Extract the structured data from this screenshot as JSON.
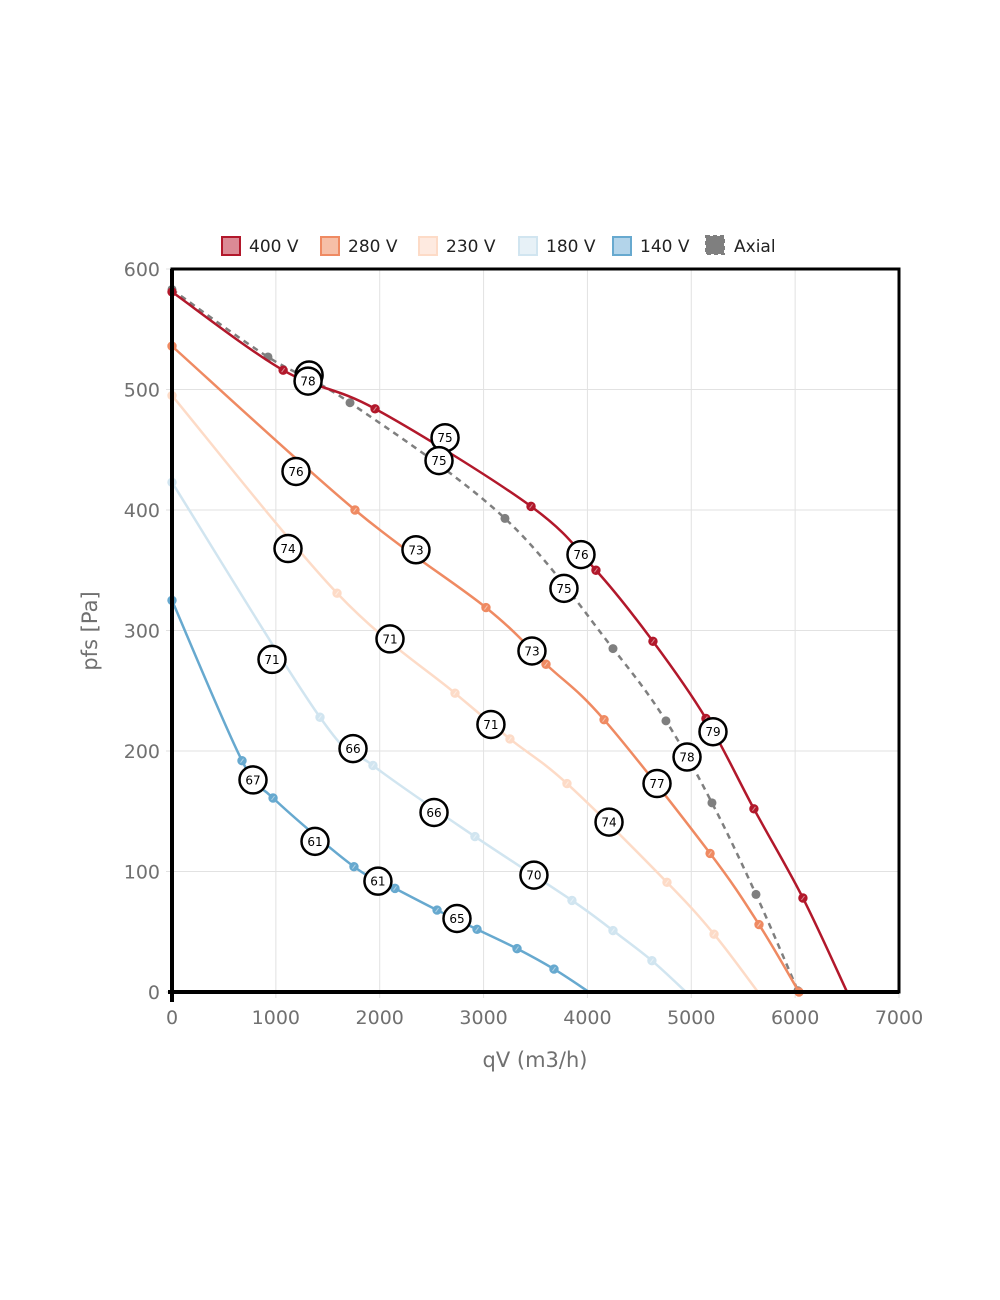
{
  "chart_data": {
    "type": "line",
    "title": "",
    "xlabel": "qV (m3/h)",
    "ylabel": "pfs [Pa]",
    "xlim": [
      0,
      7000
    ],
    "ylim": [
      0,
      600
    ],
    "xticks": [
      0,
      1000,
      2000,
      3000,
      4000,
      5000,
      6000,
      7000
    ],
    "yticks": [
      0,
      100,
      200,
      300,
      400,
      500,
      600
    ],
    "grid": true,
    "legend_position": "top-center",
    "series": [
      {
        "name": "400 V",
        "color": "#b2182b",
        "legend_fill": "#db8a95",
        "dashed": false,
        "points": [
          [
            0,
            581
          ],
          [
            1070,
            516
          ],
          [
            1955,
            484
          ],
          [
            3457,
            403
          ],
          [
            4082,
            350
          ],
          [
            4631,
            291
          ],
          [
            5141,
            227
          ],
          [
            5603,
            152
          ],
          [
            6075,
            78
          ],
          [
            6500,
            0
          ]
        ],
        "markers": [
          [
            0,
            581
          ],
          [
            1070,
            516
          ],
          [
            1955,
            484
          ],
          [
            3457,
            403
          ],
          [
            4082,
            350
          ],
          [
            4631,
            291
          ],
          [
            5141,
            227
          ],
          [
            5603,
            152
          ],
          [
            6075,
            78
          ]
        ]
      },
      {
        "name": "280 V",
        "color": "#ef8a62",
        "legend_fill": "#f6bfa7",
        "dashed": false,
        "points": [
          [
            0,
            536
          ],
          [
            1762,
            400
          ],
          [
            3023,
            319
          ],
          [
            3601,
            272
          ],
          [
            4160,
            226
          ],
          [
            5181,
            115
          ],
          [
            5652,
            56
          ],
          [
            6037,
            0
          ]
        ],
        "markers": [
          [
            0,
            536
          ],
          [
            1762,
            400
          ],
          [
            3023,
            319
          ],
          [
            3601,
            272
          ],
          [
            4160,
            226
          ],
          [
            5181,
            115
          ],
          [
            5652,
            56
          ],
          [
            6037,
            0
          ]
        ]
      },
      {
        "name": "230 V",
        "color": "#fddbc7",
        "legend_fill": "#feeae0",
        "dashed": false,
        "points": [
          [
            0,
            495
          ],
          [
            1589,
            331
          ],
          [
            2725,
            248
          ],
          [
            3254,
            210
          ],
          [
            3803,
            173
          ],
          [
            4766,
            91
          ],
          [
            5219,
            48
          ],
          [
            5642,
            0
          ]
        ],
        "markers": [
          [
            0,
            495
          ],
          [
            1589,
            331
          ],
          [
            2725,
            248
          ],
          [
            3254,
            210
          ],
          [
            3803,
            173
          ],
          [
            4766,
            91
          ],
          [
            5219,
            48
          ]
        ]
      },
      {
        "name": "180 V",
        "color": "#d1e5f0",
        "legend_fill": "#e7f1f7",
        "dashed": false,
        "points": [
          [
            0,
            423
          ],
          [
            1425,
            228
          ],
          [
            1935,
            188
          ],
          [
            2917,
            129
          ],
          [
            3851,
            76
          ],
          [
            4246,
            51
          ],
          [
            4621,
            26
          ],
          [
            4949,
            0
          ]
        ],
        "markers": [
          [
            0,
            423
          ],
          [
            1425,
            228
          ],
          [
            1935,
            188
          ],
          [
            2917,
            129
          ],
          [
            3851,
            76
          ],
          [
            4246,
            51
          ],
          [
            4621,
            26
          ]
        ]
      },
      {
        "name": "140 V",
        "color": "#67a9cf",
        "legend_fill": "#b3d4ea",
        "dashed": false,
        "points": [
          [
            0,
            325
          ],
          [
            674,
            192
          ],
          [
            973,
            161
          ],
          [
            1752,
            104
          ],
          [
            2147,
            86
          ],
          [
            2552,
            68
          ],
          [
            2937,
            52
          ],
          [
            3322,
            36
          ],
          [
            3678,
            19
          ],
          [
            4015,
            0
          ]
        ],
        "markers": [
          [
            0,
            325
          ],
          [
            674,
            192
          ],
          [
            973,
            161
          ],
          [
            1752,
            104
          ],
          [
            2147,
            86
          ],
          [
            2552,
            68
          ],
          [
            2937,
            52
          ],
          [
            3322,
            36
          ],
          [
            3678,
            19
          ]
        ]
      },
      {
        "name": "Axial",
        "color": "#7f7f7f",
        "legend_fill": "#7f7f7f",
        "dashed": true,
        "points": [
          [
            0,
            583
          ],
          [
            924,
            527
          ],
          [
            1714,
            489
          ],
          [
            3206,
            393
          ],
          [
            4246,
            285
          ],
          [
            4756,
            225
          ],
          [
            5199,
            157
          ],
          [
            5623,
            81
          ],
          [
            6027,
            1
          ]
        ],
        "markers": [
          [
            0,
            583
          ],
          [
            924,
            527
          ],
          [
            1714,
            489
          ],
          [
            3206,
            393
          ],
          [
            4246,
            285
          ],
          [
            4756,
            225
          ],
          [
            5199,
            157
          ],
          [
            5623,
            81
          ],
          [
            6027,
            1
          ]
        ]
      }
    ],
    "annotations": [
      {
        "text": "78",
        "x": 1320,
        "y": 512
      },
      {
        "text": "78",
        "x": 1310,
        "y": 507
      },
      {
        "text": "75",
        "x": 2629,
        "y": 460
      },
      {
        "text": "75",
        "x": 2571,
        "y": 441
      },
      {
        "text": "76",
        "x": 1194,
        "y": 432
      },
      {
        "text": "74",
        "x": 1117,
        "y": 368
      },
      {
        "text": "73",
        "x": 2349,
        "y": 367
      },
      {
        "text": "76",
        "x": 3938,
        "y": 363
      },
      {
        "text": "75",
        "x": 3774,
        "y": 335
      },
      {
        "text": "71",
        "x": 963,
        "y": 276
      },
      {
        "text": "71",
        "x": 2099,
        "y": 293
      },
      {
        "text": "73",
        "x": 3466,
        "y": 283
      },
      {
        "text": "71",
        "x": 3071,
        "y": 222
      },
      {
        "text": "66",
        "x": 1743,
        "y": 202
      },
      {
        "text": "67",
        "x": 780,
        "y": 176
      },
      {
        "text": "61",
        "x": 1377,
        "y": 125
      },
      {
        "text": "61",
        "x": 1983,
        "y": 92
      },
      {
        "text": "65",
        "x": 2744,
        "y": 61
      },
      {
        "text": "66",
        "x": 2523,
        "y": 149
      },
      {
        "text": "70",
        "x": 3485,
        "y": 97
      },
      {
        "text": "74",
        "x": 4208,
        "y": 141
      },
      {
        "text": "77",
        "x": 4670,
        "y": 173
      },
      {
        "text": "78",
        "x": 4959,
        "y": 195
      },
      {
        "text": "79",
        "x": 5209,
        "y": 216
      }
    ]
  }
}
